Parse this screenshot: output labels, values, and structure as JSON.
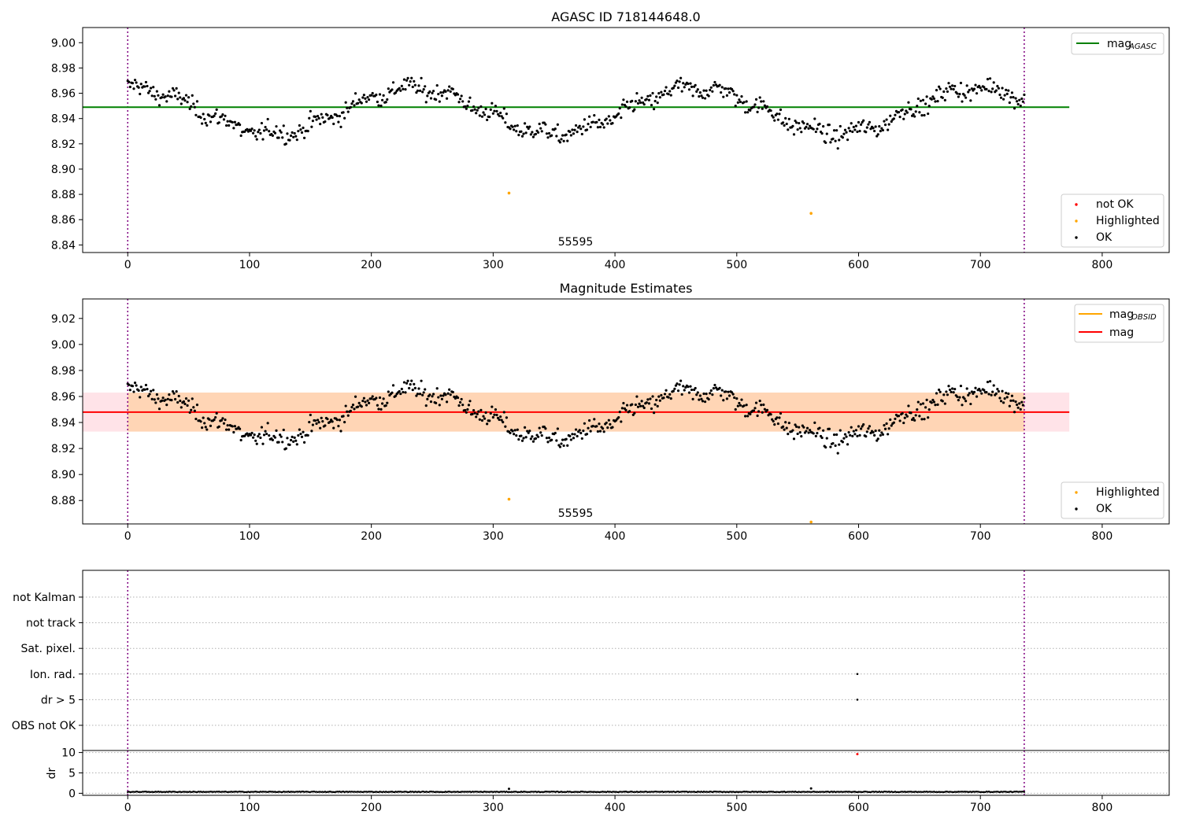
{
  "chart_data": [
    {
      "id": "mag_agasc",
      "type": "scatter",
      "title": "AGASC ID 718144648.0",
      "xlim": [
        -37,
        855
      ],
      "ylim": [
        8.834,
        9.012
      ],
      "xticks": [
        0,
        100,
        200,
        300,
        400,
        500,
        600,
        700,
        800
      ],
      "xtick_labels": [
        "0",
        "100",
        "200",
        "300",
        "400",
        "500",
        "600",
        "700",
        "800"
      ],
      "yticks": [
        8.84,
        8.86,
        8.88,
        8.9,
        8.92,
        8.94,
        8.96,
        8.98,
        9.0
      ],
      "ytick_labels": [
        "8.84",
        "8.86",
        "8.88",
        "8.90",
        "8.92",
        "8.94",
        "8.96",
        "8.98",
        "9.00"
      ],
      "vlines": [
        0,
        736
      ],
      "annotation": {
        "text": "55595",
        "x": 368,
        "y": 8.8415
      },
      "hline": {
        "name": "mag_AGASC",
        "y": 8.949,
        "x": [
          -37,
          773
        ],
        "color": "#008000"
      },
      "highlighted": [
        {
          "x": 313,
          "y": 8.881
        },
        {
          "x": 561,
          "y": 8.865
        }
      ],
      "series_model": {
        "name": "OK",
        "n": 737,
        "x_start": 0,
        "x_end": 736,
        "baseline": 8.946,
        "waves": [
          {
            "amp": 0.018,
            "period": 232,
            "phase": 1.5
          },
          {
            "amp": 0.003,
            "period": 37,
            "phase": 0.4
          }
        ],
        "scatter": 0.009
      },
      "legend": [
        {
          "label": "not OK",
          "color": "#ff0000",
          "marker": "dot"
        },
        {
          "label": "Highlighted",
          "color": "#ffa500",
          "marker": "dot"
        },
        {
          "label": "OK",
          "color": "#000000",
          "marker": "dot"
        }
      ],
      "legend_top": {
        "label_main": "mag",
        "label_sub": "AGASC",
        "color": "#008000"
      }
    },
    {
      "id": "mag_estimates",
      "type": "scatter",
      "title": "Magnitude Estimates",
      "xlim": [
        -37,
        855
      ],
      "ylim": [
        8.862,
        9.035
      ],
      "xticks": [
        0,
        100,
        200,
        300,
        400,
        500,
        600,
        700,
        800
      ],
      "xtick_labels": [
        "0",
        "100",
        "200",
        "300",
        "400",
        "500",
        "600",
        "700",
        "800"
      ],
      "yticks": [
        8.88,
        8.9,
        8.92,
        8.94,
        8.96,
        8.98,
        9.0,
        9.02
      ],
      "ytick_labels": [
        "8.88",
        "8.90",
        "8.92",
        "8.94",
        "8.96",
        "8.98",
        "9.00",
        "9.02"
      ],
      "vlines": [
        0,
        736
      ],
      "annotation": {
        "text": "55595",
        "x": 368,
        "y": 8.8685
      },
      "band": {
        "y1": 8.933,
        "y2": 8.963,
        "x": [
          -37,
          773
        ]
      },
      "inner_band": {
        "y1": 8.933,
        "y2": 8.963,
        "x": [
          0,
          736
        ]
      },
      "hline": {
        "name": "mag",
        "y": 8.948,
        "x": [
          -37,
          773
        ],
        "color": "#ff0000"
      },
      "highlighted": [
        {
          "x": 313,
          "y": 8.881
        },
        {
          "x": 561,
          "y": 8.8635
        }
      ],
      "legend": [
        {
          "label": "Highlighted",
          "color": "#ffa500",
          "marker": "dot"
        },
        {
          "label": "OK",
          "color": "#000000",
          "marker": "dot"
        }
      ],
      "legend_top": [
        {
          "label_main": "mag",
          "label_sub": "OBSID",
          "color": "#ffa500"
        },
        {
          "label_main": "mag",
          "label_sub": "",
          "color": "#ff0000"
        }
      ]
    },
    {
      "id": "flags",
      "type": "scatter",
      "xlim": [
        -37,
        855
      ],
      "categories": [
        "not Kalman",
        "not track",
        "Sat. pixel.",
        "Ion. rad.",
        "dr > 5",
        "OBS not OK"
      ],
      "vlines": [
        0,
        736
      ],
      "points": [
        {
          "x": 599,
          "category": "Ion. rad."
        },
        {
          "x": 599,
          "category": "dr > 5"
        }
      ]
    },
    {
      "id": "dr",
      "type": "scatter",
      "ylabel": "dr",
      "xlim": [
        -37,
        855
      ],
      "ylim": [
        -0.5,
        10.5
      ],
      "xticks": [
        0,
        100,
        200,
        300,
        400,
        500,
        600,
        700,
        800
      ],
      "xtick_labels": [
        "0",
        "100",
        "200",
        "300",
        "400",
        "500",
        "600",
        "700",
        "800"
      ],
      "yticks": [
        0,
        5,
        10
      ],
      "ytick_labels": [
        "0",
        "5",
        "10"
      ],
      "vlines": [
        0,
        736
      ],
      "outliers": [
        {
          "x": 599,
          "y": 9.6,
          "color": "#ff0000"
        },
        {
          "x": 313,
          "y": 1.1
        },
        {
          "x": 561,
          "y": 1.2
        }
      ],
      "series_model": {
        "n": 737,
        "x_start": 0,
        "x_end": 736,
        "base": 0.35,
        "amp": 0.15
      }
    }
  ]
}
